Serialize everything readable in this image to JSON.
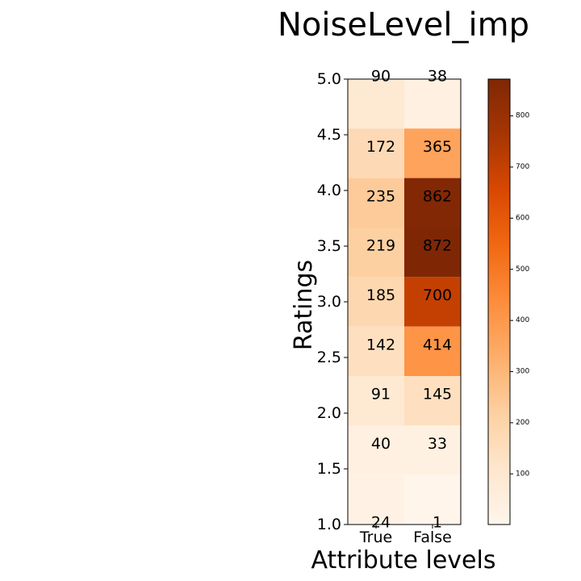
{
  "chart_data": {
    "type": "heatmap",
    "title": "NoiseLevel_imp",
    "xlabel": "Attribute levels",
    "ylabel": "Ratings",
    "x_categories": [
      "True",
      "False"
    ],
    "y_categories": [
      5.0,
      4.5,
      4.0,
      3.5,
      3.0,
      2.5,
      2.0,
      1.5,
      1.0
    ],
    "y_tick_labels": [
      "5.0",
      "4.5",
      "4.0",
      "3.5",
      "3.0",
      "2.5",
      "2.0",
      "1.5",
      "1.0"
    ],
    "values": [
      [
        90,
        38
      ],
      [
        172,
        365
      ],
      [
        235,
        862
      ],
      [
        219,
        872
      ],
      [
        185,
        700
      ],
      [
        142,
        414
      ],
      [
        91,
        145
      ],
      [
        40,
        33
      ],
      [
        24,
        1
      ]
    ],
    "colormap": "Oranges",
    "colorbar": {
      "range": [
        1,
        872
      ],
      "ticks": [
        100,
        200,
        300,
        400,
        500,
        600,
        700,
        800
      ],
      "tick_labels": [
        "100",
        "200",
        "300",
        "400",
        "500",
        "600",
        "700",
        "800"
      ]
    },
    "colors": {
      "low": "#fff5eb",
      "high": "#7f2704"
    }
  }
}
